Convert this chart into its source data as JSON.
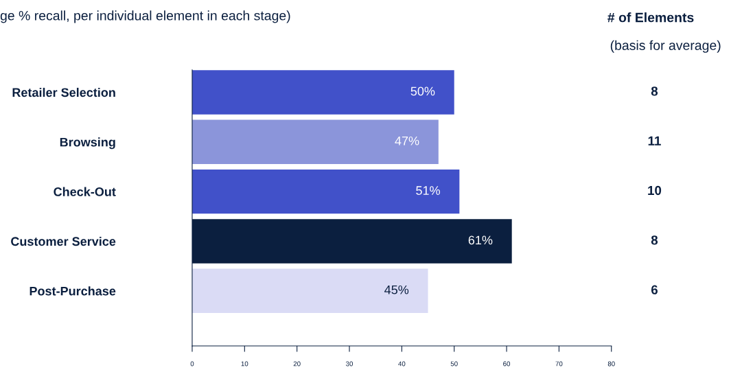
{
  "chart_data": {
    "type": "bar",
    "orientation": "horizontal",
    "title": "ge % recall, per individual element in each stage)",
    "categories": [
      "Retailer Selection",
      "Browsing",
      "Check-Out",
      "Customer Service",
      "Post-Purchase"
    ],
    "values": [
      50,
      47,
      51,
      61,
      45
    ],
    "colors": [
      "#4151c9",
      "#8b95da",
      "#4151c9",
      "#0b1f3f",
      "#dadbf5"
    ],
    "value_labels": [
      "50%",
      "47%",
      "51%",
      "61%",
      "45%"
    ],
    "xlim": [
      0,
      80
    ],
    "xticks": [
      0,
      10,
      20,
      30,
      40,
      50,
      60,
      70,
      80
    ],
    "grid": false,
    "annotations": [
      "# of Elements",
      "(basis for average)",
      "8",
      "11",
      "10",
      "8",
      "6"
    ]
  }
}
